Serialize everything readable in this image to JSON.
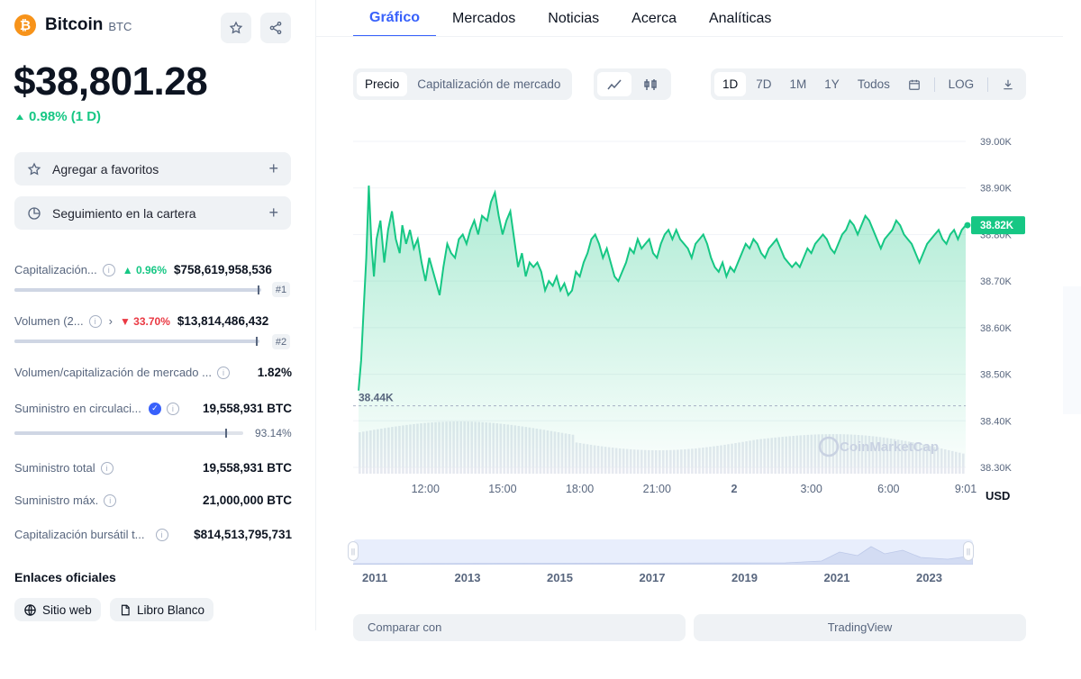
{
  "coin": {
    "name": "Bitcoin",
    "symbol": "BTC",
    "logo_glyph": "₿",
    "logo_color": "#f7931a"
  },
  "price": "$38,801.28",
  "change": "0.98% (1 D)",
  "actions": {
    "favorites": "Agregar a favoritos",
    "portfolio": "Seguimiento en la cartera",
    "plus": "+"
  },
  "stats": {
    "market_cap": {
      "label": "Capitalización...",
      "pct": "0.96%",
      "value": "$758,619,958,536",
      "rank": "#1"
    },
    "volume": {
      "label": "Volumen (2...",
      "pct": "33.70%",
      "value": "$13,814,486,432",
      "rank": "#2"
    },
    "vol_mcap": {
      "label": "Volumen/capitalización de mercado ...",
      "value": "1.82%"
    },
    "circulating": {
      "label": "Suministro en circulaci...",
      "value": "19,558,931 BTC",
      "pct": "93.14%"
    },
    "total": {
      "label": "Suministro total",
      "value": "19,558,931 BTC"
    },
    "max": {
      "label": "Suministro máx.",
      "value": "21,000,000 BTC"
    },
    "fdv": {
      "label": "Capitalización bursátil t...",
      "value": "$814,513,795,731"
    }
  },
  "links": {
    "title": "Enlaces oficiales",
    "website": "Sitio web",
    "whitepaper": "Libro Blanco"
  },
  "tabs": [
    "Gráfico",
    "Mercados",
    "Noticias",
    "Acerca",
    "Analíticas"
  ],
  "chart_controls": {
    "type_options": [
      "Precio",
      "Capitalización de mercado"
    ],
    "ranges": [
      "1D",
      "7D",
      "1M",
      "1Y",
      "Todos"
    ],
    "log": "LOG"
  },
  "chart_data": {
    "type": "area",
    "x_labels": [
      "12:00",
      "15:00",
      "18:00",
      "21:00",
      "2",
      "3:00",
      "6:00",
      "9:01"
    ],
    "y_ticks": [
      "39.00K",
      "38.90K",
      "38.80K",
      "38.70K",
      "38.60K",
      "38.50K",
      "38.40K",
      "38.30K"
    ],
    "ylim": [
      38300,
      39000
    ],
    "x_range_hours": [
      9.4,
      33.0
    ],
    "current_label": "38.82K",
    "current_value": 38820,
    "low_label": "38.44K",
    "low_value": 38440,
    "currency": "USD",
    "watermark": "CoinMarketCap",
    "line_color": "#16c784",
    "series": [
      [
        9.4,
        38465
      ],
      [
        9.5,
        38530
      ],
      [
        9.6,
        38640
      ],
      [
        9.7,
        38750
      ],
      [
        9.8,
        38905
      ],
      [
        9.9,
        38780
      ],
      [
        10.0,
        38710
      ],
      [
        10.1,
        38790
      ],
      [
        10.25,
        38830
      ],
      [
        10.4,
        38740
      ],
      [
        10.55,
        38810
      ],
      [
        10.7,
        38850
      ],
      [
        10.85,
        38790
      ],
      [
        11.0,
        38760
      ],
      [
        11.1,
        38820
      ],
      [
        11.25,
        38780
      ],
      [
        11.4,
        38810
      ],
      [
        11.55,
        38770
      ],
      [
        11.7,
        38790
      ],
      [
        11.85,
        38740
      ],
      [
        12.0,
        38700
      ],
      [
        12.15,
        38750
      ],
      [
        12.3,
        38720
      ],
      [
        12.45,
        38690
      ],
      [
        12.55,
        38670
      ],
      [
        12.7,
        38730
      ],
      [
        12.85,
        38780
      ],
      [
        13.0,
        38760
      ],
      [
        13.15,
        38750
      ],
      [
        13.3,
        38790
      ],
      [
        13.45,
        38800
      ],
      [
        13.6,
        38780
      ],
      [
        13.75,
        38810
      ],
      [
        13.9,
        38830
      ],
      [
        14.05,
        38800
      ],
      [
        14.2,
        38840
      ],
      [
        14.4,
        38830
      ],
      [
        14.55,
        38870
      ],
      [
        14.7,
        38890
      ],
      [
        14.85,
        38840
      ],
      [
        15.0,
        38800
      ],
      [
        15.15,
        38830
      ],
      [
        15.3,
        38850
      ],
      [
        15.45,
        38790
      ],
      [
        15.6,
        38730
      ],
      [
        15.75,
        38760
      ],
      [
        15.9,
        38710
      ],
      [
        16.05,
        38740
      ],
      [
        16.2,
        38730
      ],
      [
        16.35,
        38740
      ],
      [
        16.5,
        38720
      ],
      [
        16.65,
        38680
      ],
      [
        16.8,
        38700
      ],
      [
        16.95,
        38690
      ],
      [
        17.1,
        38710
      ],
      [
        17.25,
        38680
      ],
      [
        17.4,
        38695
      ],
      [
        17.55,
        38670
      ],
      [
        17.7,
        38680
      ],
      [
        17.85,
        38720
      ],
      [
        18.0,
        38710
      ],
      [
        18.15,
        38740
      ],
      [
        18.3,
        38760
      ],
      [
        18.45,
        38790
      ],
      [
        18.6,
        38800
      ],
      [
        18.75,
        38780
      ],
      [
        18.9,
        38750
      ],
      [
        19.05,
        38770
      ],
      [
        19.2,
        38740
      ],
      [
        19.35,
        38710
      ],
      [
        19.5,
        38700
      ],
      [
        19.65,
        38720
      ],
      [
        19.8,
        38740
      ],
      [
        19.95,
        38770
      ],
      [
        20.1,
        38760
      ],
      [
        20.25,
        38790
      ],
      [
        20.4,
        38770
      ],
      [
        20.55,
        38780
      ],
      [
        20.7,
        38790
      ],
      [
        20.85,
        38760
      ],
      [
        21.0,
        38750
      ],
      [
        21.15,
        38780
      ],
      [
        21.3,
        38800
      ],
      [
        21.45,
        38810
      ],
      [
        21.6,
        38790
      ],
      [
        21.75,
        38810
      ],
      [
        21.9,
        38790
      ],
      [
        22.05,
        38780
      ],
      [
        22.2,
        38770
      ],
      [
        22.35,
        38750
      ],
      [
        22.5,
        38780
      ],
      [
        22.65,
        38790
      ],
      [
        22.8,
        38800
      ],
      [
        22.95,
        38780
      ],
      [
        23.1,
        38750
      ],
      [
        23.25,
        38730
      ],
      [
        23.4,
        38720
      ],
      [
        23.55,
        38740
      ],
      [
        23.7,
        38710
      ],
      [
        23.85,
        38730
      ],
      [
        24.0,
        38720
      ],
      [
        24.15,
        38740
      ],
      [
        24.3,
        38760
      ],
      [
        24.45,
        38780
      ],
      [
        24.6,
        38770
      ],
      [
        24.75,
        38790
      ],
      [
        24.9,
        38780
      ],
      [
        25.05,
        38760
      ],
      [
        25.2,
        38750
      ],
      [
        25.35,
        38770
      ],
      [
        25.5,
        38780
      ],
      [
        25.65,
        38790
      ],
      [
        25.8,
        38770
      ],
      [
        25.95,
        38750
      ],
      [
        26.1,
        38740
      ],
      [
        26.25,
        38730
      ],
      [
        26.4,
        38740
      ],
      [
        26.55,
        38730
      ],
      [
        26.7,
        38750
      ],
      [
        26.85,
        38770
      ],
      [
        27.0,
        38760
      ],
      [
        27.15,
        38780
      ],
      [
        27.3,
        38790
      ],
      [
        27.45,
        38800
      ],
      [
        27.6,
        38790
      ],
      [
        27.75,
        38770
      ],
      [
        27.9,
        38760
      ],
      [
        28.05,
        38780
      ],
      [
        28.2,
        38800
      ],
      [
        28.35,
        38810
      ],
      [
        28.5,
        38830
      ],
      [
        28.65,
        38820
      ],
      [
        28.8,
        38800
      ],
      [
        28.95,
        38820
      ],
      [
        29.1,
        38840
      ],
      [
        29.25,
        38830
      ],
      [
        29.4,
        38810
      ],
      [
        29.55,
        38790
      ],
      [
        29.7,
        38770
      ],
      [
        29.85,
        38790
      ],
      [
        30.0,
        38800
      ],
      [
        30.15,
        38810
      ],
      [
        30.3,
        38830
      ],
      [
        30.45,
        38820
      ],
      [
        30.6,
        38800
      ],
      [
        30.75,
        38790
      ],
      [
        30.9,
        38780
      ],
      [
        31.05,
        38760
      ],
      [
        31.2,
        38740
      ],
      [
        31.35,
        38760
      ],
      [
        31.5,
        38780
      ],
      [
        31.65,
        38790
      ],
      [
        31.8,
        38800
      ],
      [
        31.95,
        38810
      ],
      [
        32.1,
        38790
      ],
      [
        32.25,
        38780
      ],
      [
        32.4,
        38800
      ],
      [
        32.55,
        38810
      ],
      [
        32.7,
        38790
      ],
      [
        32.85,
        38810
      ],
      [
        33.0,
        38820
      ]
    ]
  },
  "navigator": {
    "years": [
      "2011",
      "2013",
      "2015",
      "2017",
      "2019",
      "2021",
      "2023"
    ]
  },
  "bottom": {
    "compare": "Comparar con",
    "tradingview": "TradingView"
  }
}
